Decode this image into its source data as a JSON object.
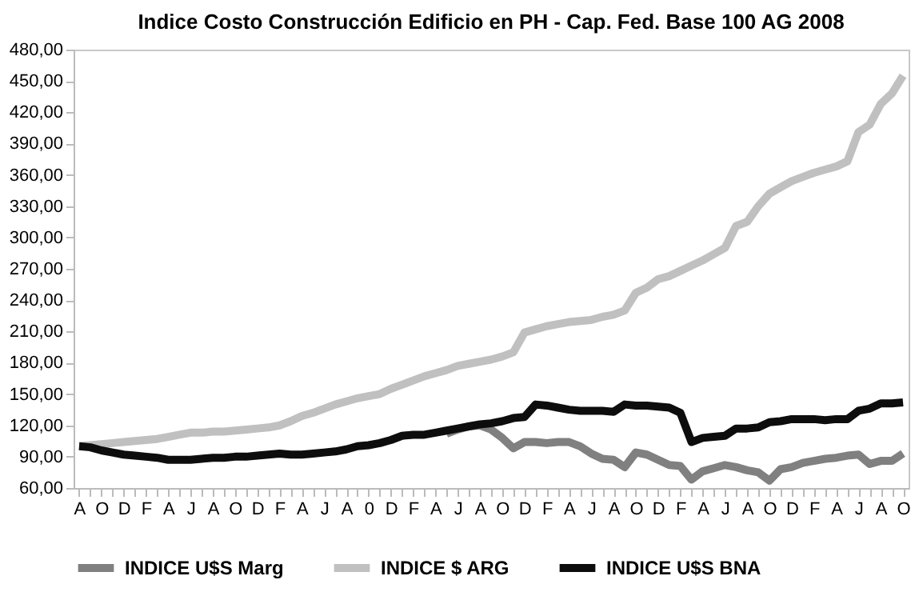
{
  "chart_data": {
    "type": "line",
    "title": "Indice Costo Construcción Edificio en PH - Cap. Fed. Base 100 AG 2008",
    "categories": [
      "A",
      null,
      "O",
      null,
      "D",
      null,
      "F",
      null,
      "A",
      null,
      "J",
      null,
      "A",
      null,
      "O",
      null,
      "D",
      null,
      "F",
      null,
      "A",
      null,
      "J",
      null,
      "A",
      null,
      "0",
      null,
      "D",
      null,
      "F",
      null,
      "A",
      null,
      "J",
      null,
      "A",
      null,
      "O",
      null,
      "D",
      null,
      "F",
      null,
      "A",
      null,
      "J",
      null,
      "A",
      null,
      "O",
      null,
      "D",
      null,
      "F",
      null,
      "A",
      null,
      "J",
      null,
      "A",
      null,
      "O",
      null,
      "D",
      null,
      "F",
      null,
      "A",
      null,
      "J",
      null,
      "A",
      null,
      "O"
    ],
    "series": [
      {
        "name": "INDICE U$S Marg",
        "color": "#808080",
        "values": [
          null,
          null,
          null,
          null,
          null,
          null,
          null,
          null,
          null,
          null,
          null,
          null,
          null,
          null,
          null,
          null,
          null,
          null,
          null,
          null,
          null,
          null,
          null,
          null,
          null,
          null,
          null,
          null,
          null,
          null,
          null,
          null,
          null,
          112,
          116,
          119,
          120,
          116,
          108,
          98,
          104,
          104,
          103,
          104,
          104,
          100,
          93,
          88,
          87,
          80,
          94,
          92,
          87,
          82,
          81,
          68,
          76,
          79,
          82,
          80,
          77,
          75,
          67,
          78,
          80,
          84,
          86,
          88,
          89,
          91,
          92,
          83,
          86,
          86,
          93
        ]
      },
      {
        "name": "INDICE $ ARG",
        "color": "#c0c0c0",
        "values": [
          100,
          101,
          102,
          103,
          104,
          105,
          106,
          107,
          109,
          111,
          113,
          113,
          114,
          114,
          115,
          116,
          117,
          118,
          120,
          124,
          129,
          132,
          136,
          140,
          143,
          146,
          148,
          150,
          155,
          159,
          163,
          167,
          170,
          173,
          177,
          179,
          181,
          183,
          186,
          190,
          209,
          212,
          215,
          217,
          219,
          220,
          221,
          224,
          226,
          230,
          247,
          252,
          260,
          263,
          268,
          273,
          278,
          284,
          290,
          311,
          315,
          330,
          342,
          348,
          354,
          358,
          362,
          365,
          368,
          373,
          401,
          408,
          428,
          438,
          455
        ]
      },
      {
        "name": "INDICE U$S BNA",
        "color": "#0d0d0d",
        "values": [
          100,
          99,
          96,
          94,
          92,
          91,
          90,
          89,
          87,
          87,
          87,
          88,
          89,
          89,
          90,
          90,
          91,
          92,
          93,
          92,
          92,
          93,
          94,
          95,
          97,
          100,
          101,
          103,
          106,
          110,
          111,
          111,
          113,
          115,
          117,
          119,
          121,
          122,
          124,
          127,
          128,
          140,
          139,
          137,
          135,
          134,
          134,
          134,
          133,
          140,
          139,
          139,
          138,
          137,
          132,
          104,
          108,
          109,
          110,
          117,
          117,
          118,
          123,
          124,
          126,
          126,
          126,
          125,
          126,
          126,
          134,
          136,
          141,
          141,
          142
        ]
      }
    ],
    "ylim": [
      60,
      480
    ],
    "yticks": [
      {
        "value": 60,
        "label": "60,00"
      },
      {
        "value": 90,
        "label": "90,00"
      },
      {
        "value": 120,
        "label": "120,00"
      },
      {
        "value": 150,
        "label": "150,00"
      },
      {
        "value": 180,
        "label": "180,00"
      },
      {
        "value": 210,
        "label": "210,00"
      },
      {
        "value": 240,
        "label": "240,00"
      },
      {
        "value": 270,
        "label": "270,00"
      },
      {
        "value": 300,
        "label": "300,00"
      },
      {
        "value": 330,
        "label": "330,00"
      },
      {
        "value": 360,
        "label": "360,00"
      },
      {
        "value": 390,
        "label": "390,00"
      },
      {
        "value": 420,
        "label": "420,00"
      },
      {
        "value": 450,
        "label": "450,00"
      },
      {
        "value": 480,
        "label": "480,00"
      }
    ],
    "grid": false,
    "legend": "bottom",
    "marker": "none",
    "line_style": "solid"
  }
}
